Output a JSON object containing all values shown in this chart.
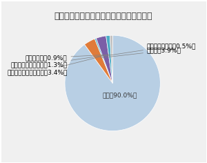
{
  "title": "【図２】認定看護師の所属施設種別の割合",
  "slices": [
    {
      "label": "病院（90.0%）",
      "value": 90.0,
      "color": "#b8cfe4"
    },
    {
      "label": "その他（3.9%）",
      "value": 3.9,
      "color": "#e07b39"
    },
    {
      "label": "介護保険施設等（0.5%）",
      "value": 0.5,
      "color": "#4bacc6"
    },
    {
      "label": "訪問看護ステーション（3.4%）",
      "value": 3.4,
      "color": "#7b5ea7"
    },
    {
      "label": "クリニック・診療所（1.3%）",
      "value": 1.3,
      "color": "#4bacc6"
    },
    {
      "label": "学校・大学（0.9%）",
      "value": 0.9,
      "color": "#c0c0c0"
    }
  ],
  "annotation_labels": [
    "介護保険施設等（0.5%）",
    "その他（3.9%）",
    "学校・大学（0.9%）",
    "クリニック・診療所（1.3%）",
    "訪問看護ステーション（3.4%）"
  ],
  "background_color": "#f0f0f0",
  "inner_label": "病院（90.0%）",
  "fontsize_title": 9,
  "fontsize_labels": 6.5
}
